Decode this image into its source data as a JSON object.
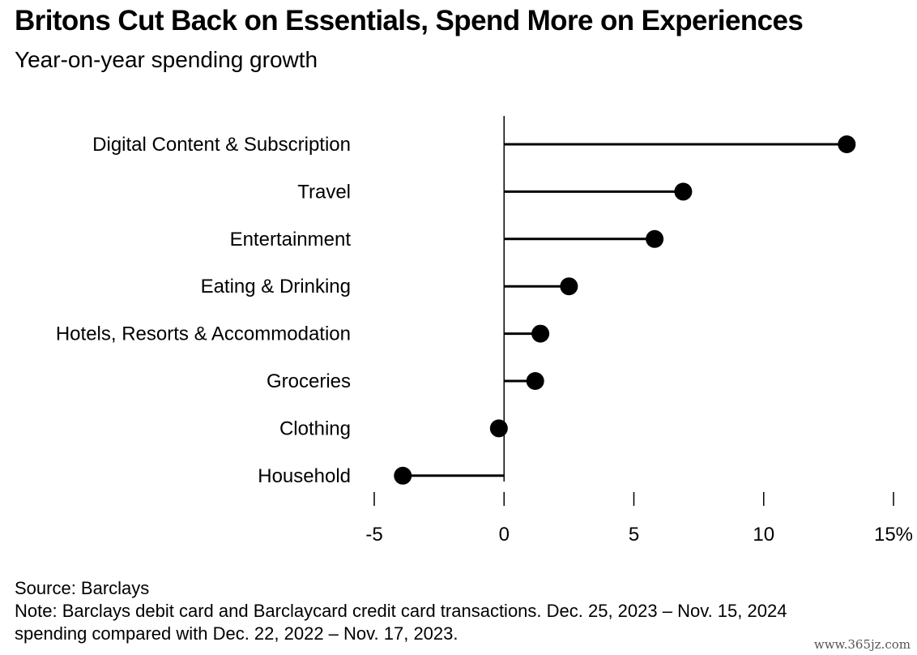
{
  "header": {
    "title": "Britons Cut Back on Essentials, Spend More on Experiences",
    "subtitle": "Year-on-year spending growth"
  },
  "chart_data": {
    "type": "lollipop",
    "orientation": "horizontal",
    "categories": [
      "Digital Content & Subscription",
      "Travel",
      "Entertainment",
      "Eating & Drinking",
      "Hotels, Resorts & Accommodation",
      "Groceries",
      "Clothing",
      "Household"
    ],
    "values": [
      13.2,
      6.9,
      5.8,
      2.5,
      1.4,
      1.2,
      -0.2,
      -3.9
    ],
    "xlim": [
      -5,
      15
    ],
    "xticks": [
      -5,
      0,
      5,
      10,
      15
    ],
    "xtick_labels": [
      "-5",
      "0",
      "5",
      "10",
      "15%"
    ],
    "grid": false,
    "colors": {
      "marker": "#000000",
      "axis": "#000000"
    }
  },
  "footer": {
    "source": "Source: Barclays",
    "note_line1": "Note: Barclays debit card and Barclaycard credit card transactions. Dec. 25, 2023 – Nov. 15, 2024",
    "note_line2": "spending compared with Dec. 22, 2022 – Nov. 17, 2023."
  },
  "watermark": "www.365jz.com"
}
